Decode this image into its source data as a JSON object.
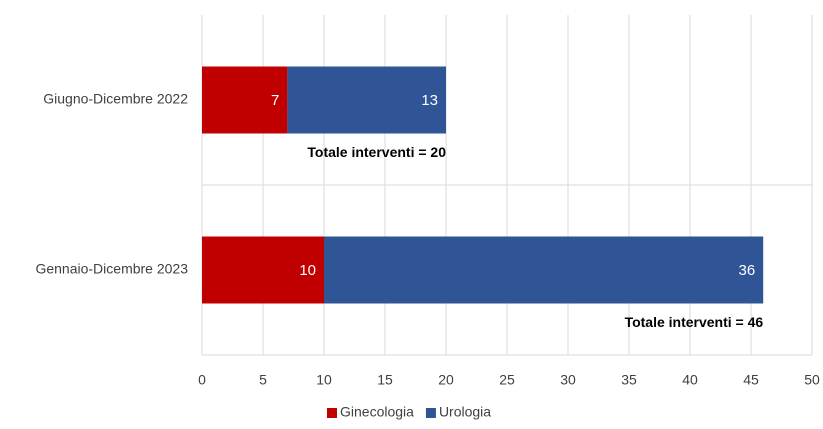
{
  "chart_data": {
    "type": "hbar_stacked",
    "categories": [
      "Giugno-Dicembre 2022",
      "Gennaio-Dicembre 2023"
    ],
    "series": [
      {
        "name": "Ginecologia",
        "color": "#c00000",
        "values": [
          7,
          10
        ]
      },
      {
        "name": "Urologia",
        "color": "#2f5597",
        "values": [
          13,
          36
        ]
      }
    ],
    "annotations": [
      "Totale interventi = 20",
      "Totale interventi = 46"
    ],
    "xlim": [
      0,
      50
    ],
    "xticks": [
      0,
      5,
      10,
      15,
      20,
      25,
      30,
      35,
      40,
      45,
      50
    ],
    "grid": true,
    "legend": "bottom"
  }
}
